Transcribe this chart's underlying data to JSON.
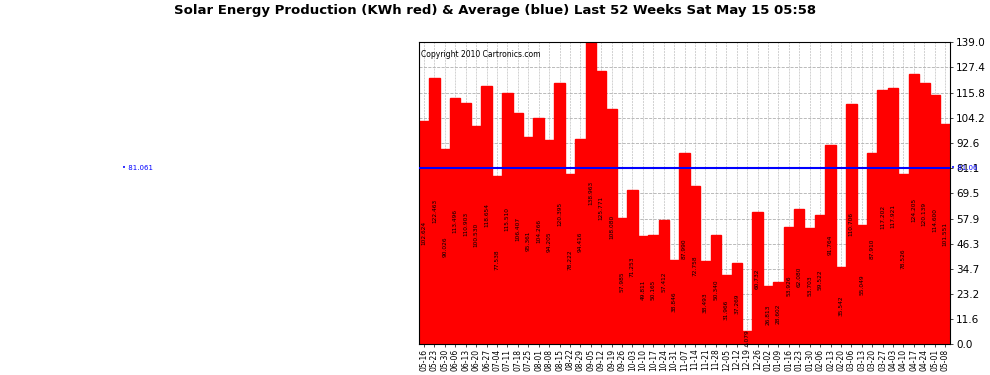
{
  "title": "Solar Energy Production (KWh red) & Average (blue) Last 52 Weeks Sat May 15 05:58",
  "copyright": "Copyright 2010 Cartronics.com",
  "bar_color": "#ff0000",
  "average_color": "#0000ff",
  "background_color": "#ffffff",
  "plot_bg_color": "#ffffff",
  "grid_color": "#b0b0b0",
  "average_value": 81.061,
  "ylim": [
    0,
    139.0
  ],
  "yticks": [
    0.0,
    11.6,
    23.2,
    34.7,
    46.3,
    57.9,
    69.5,
    81.1,
    92.6,
    104.2,
    115.8,
    127.4,
    139.0
  ],
  "labels": [
    "05-16",
    "05-23",
    "05-30",
    "06-06",
    "06-13",
    "06-20",
    "06-27",
    "07-04",
    "07-11",
    "07-18",
    "07-25",
    "08-01",
    "08-08",
    "08-15",
    "08-22",
    "08-29",
    "09-05",
    "09-12",
    "09-19",
    "09-26",
    "10-03",
    "10-10",
    "10-17",
    "10-24",
    "10-31",
    "11-07",
    "11-14",
    "11-21",
    "11-28",
    "12-05",
    "12-12",
    "12-19",
    "12-26",
    "01-02",
    "01-09",
    "01-16",
    "01-23",
    "01-30",
    "02-06",
    "02-13",
    "02-20",
    "03-06",
    "03-13",
    "03-20",
    "03-27",
    "04-03",
    "04-10",
    "04-17",
    "04-24",
    "05-01",
    "05-08"
  ],
  "values": [
    102.624,
    122.463,
    90.026,
    113.496,
    110.903,
    100.53,
    118.654,
    77.538,
    115.51,
    106.407,
    95.361,
    104.266,
    94.205,
    120.395,
    78.222,
    94.416,
    138.963,
    125.771,
    108.08,
    57.985,
    71.253,
    49.811,
    50.165,
    57.412,
    38.846,
    87.99,
    72.758,
    38.493,
    50.34,
    31.966,
    37.269,
    6.079,
    60.732,
    26.813,
    28.602,
    53.926,
    62.08,
    53.703,
    59.522,
    91.764,
    35.542,
    110.706,
    55.049,
    87.91,
    117.202,
    117.921,
    78.526,
    124.205,
    120.139,
    114.6,
    101.551
  ]
}
